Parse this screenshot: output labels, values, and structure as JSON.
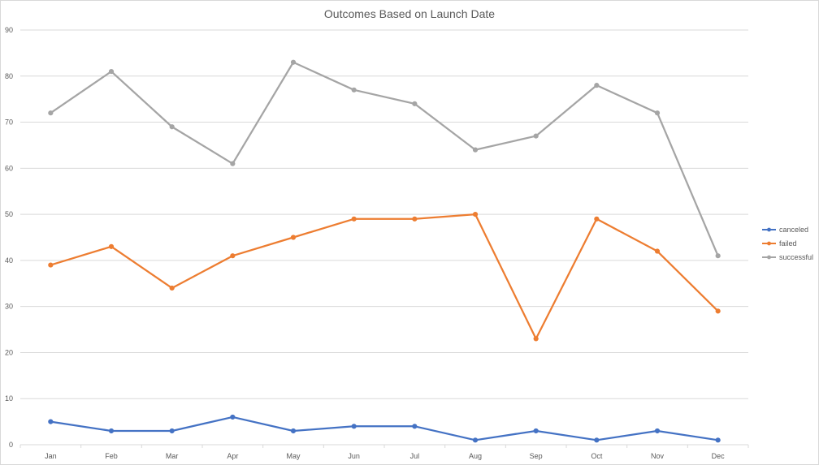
{
  "chart_data": {
    "type": "line",
    "title": "Outcomes Based on Launch Date",
    "xlabel": "",
    "ylabel": "",
    "categories": [
      "Jan",
      "Feb",
      "Mar",
      "Apr",
      "May",
      "Jun",
      "Jul",
      "Aug",
      "Sep",
      "Oct",
      "Nov",
      "Dec"
    ],
    "ylim": [
      0,
      90
    ],
    "yticks": [
      0,
      10,
      20,
      30,
      40,
      50,
      60,
      70,
      80,
      90
    ],
    "grid": true,
    "legend_position": "right",
    "series": [
      {
        "name": "canceled",
        "color": "#4472c4",
        "values": [
          5,
          3,
          3,
          6,
          3,
          4,
          4,
          1,
          3,
          1,
          3,
          1
        ]
      },
      {
        "name": "failed",
        "color": "#ed7d31",
        "values": [
          39,
          43,
          34,
          41,
          45,
          49,
          49,
          50,
          23,
          49,
          42,
          29
        ]
      },
      {
        "name": "successful",
        "color": "#a5a5a5",
        "values": [
          72,
          81,
          69,
          61,
          83,
          77,
          74,
          64,
          67,
          78,
          72,
          41
        ]
      }
    ]
  }
}
